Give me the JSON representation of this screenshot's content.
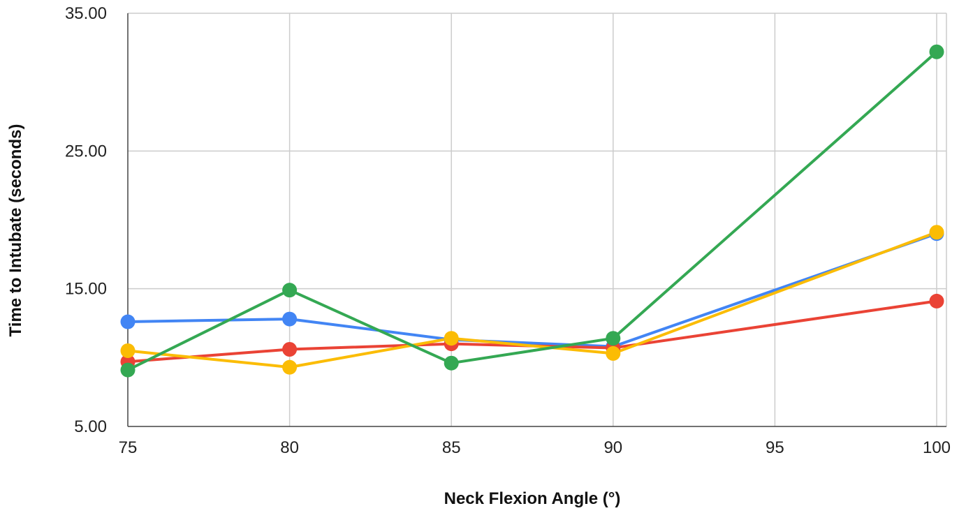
{
  "chart_data": {
    "type": "line",
    "title": "",
    "xlabel": "Neck Flexion Angle (°)",
    "ylabel": "Time to Intubate (seconds)",
    "x": [
      75,
      80,
      85,
      90,
      95,
      100
    ],
    "xlim": [
      75,
      100
    ],
    "ylim": [
      5,
      35
    ],
    "xticks": [
      75,
      80,
      85,
      90,
      95,
      100
    ],
    "yticks": [
      5,
      15,
      25,
      35
    ],
    "ytick_labels": [
      "5.00",
      "15.00",
      "25.00",
      "35.00"
    ],
    "grid": true,
    "legend": "none",
    "series": [
      {
        "color": "#4285F4",
        "points": [
          [
            75,
            12.6
          ],
          [
            80,
            12.8
          ],
          [
            85,
            11.3
          ],
          [
            90,
            10.8
          ],
          [
            100,
            19.0
          ]
        ]
      },
      {
        "color": "#EA4335",
        "points": [
          [
            75,
            9.7
          ],
          [
            80,
            10.6
          ],
          [
            85,
            11.0
          ],
          [
            90,
            10.7
          ],
          [
            100,
            14.1
          ]
        ]
      },
      {
        "color": "#FBBC04",
        "points": [
          [
            75,
            10.5
          ],
          [
            80,
            9.3
          ],
          [
            85,
            11.4
          ],
          [
            90,
            10.3
          ],
          [
            100,
            19.1
          ]
        ]
      },
      {
        "color": "#34A853",
        "points": [
          [
            75,
            9.1
          ],
          [
            80,
            14.9
          ],
          [
            85,
            9.6
          ],
          [
            90,
            11.4
          ],
          [
            100,
            32.2
          ]
        ]
      }
    ]
  }
}
